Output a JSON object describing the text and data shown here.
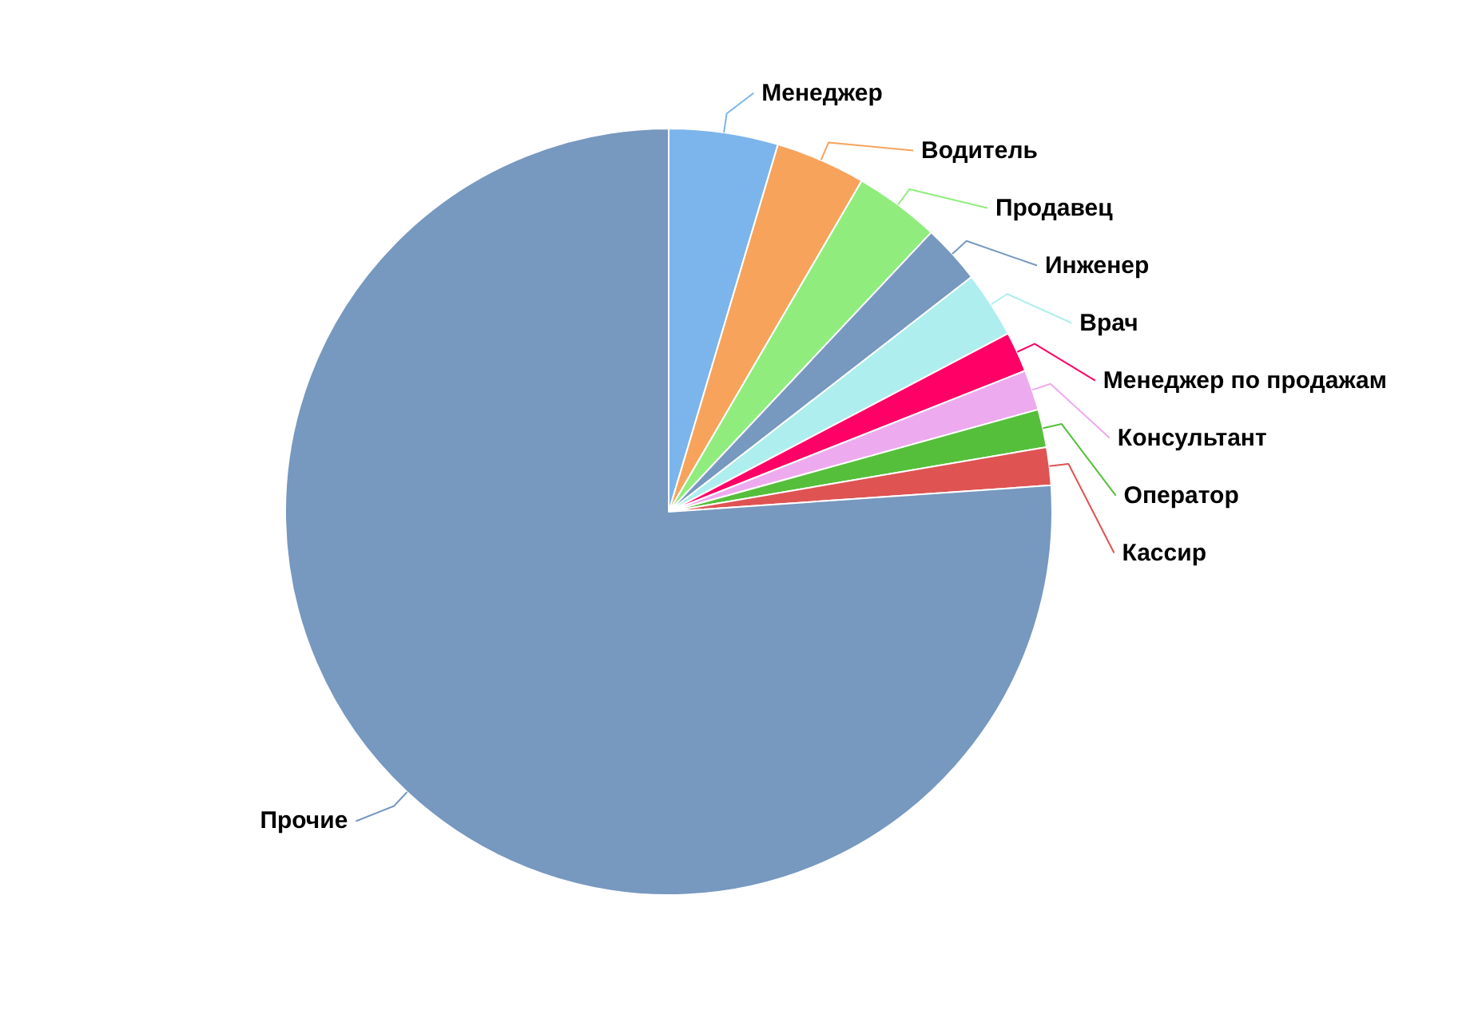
{
  "chart_data": {
    "type": "pie",
    "categories": [
      "Менеджер",
      "Водитель",
      "Продавец",
      "Инженер",
      "Врач",
      "Менеджер по продажам",
      "Консультант",
      "Оператор",
      "Кассир",
      "Прочие"
    ],
    "values": [
      4.6,
      3.8,
      3.6,
      2.5,
      2.8,
      1.7,
      1.7,
      1.6,
      1.6,
      76.1
    ],
    "colors": [
      "#7cb5ec",
      "#f7a35c",
      "#90ed7d",
      "#7798bf",
      "#aeeeee",
      "#ff0066",
      "#eeaaee",
      "#55bf3b",
      "#df5353",
      "#7798bf"
    ]
  }
}
